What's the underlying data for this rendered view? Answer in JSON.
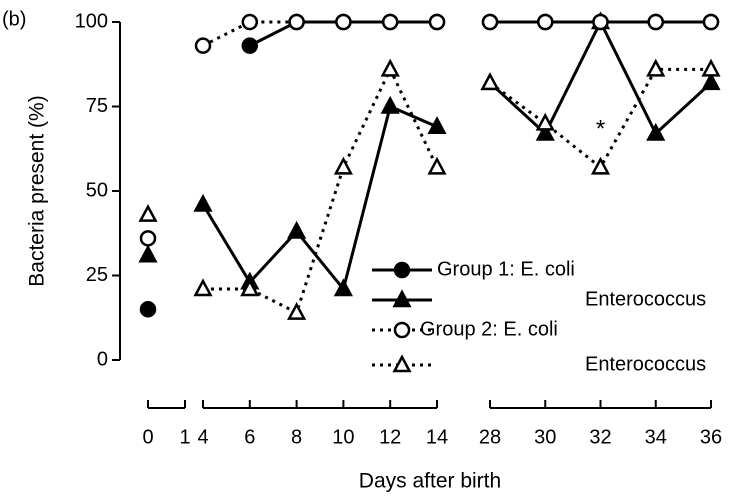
{
  "chart_data": {
    "type": "line",
    "panel_label": "(b)",
    "ylabel": "Bacteria present (%)",
    "xlabel": "Days after birth",
    "x": [
      0,
      4,
      6,
      8,
      10,
      12,
      14,
      28,
      30,
      32,
      34,
      36
    ],
    "series": [
      {
        "name": "Group 1: E. coli",
        "color": "#000000",
        "line": "solid",
        "marker": "circle",
        "filled": true,
        "values": [
          15,
          null,
          93,
          100,
          100,
          100,
          100,
          100,
          100,
          100,
          100,
          100
        ]
      },
      {
        "name": "Enterococcus",
        "color": "#000000",
        "line": "solid",
        "marker": "triangle",
        "filled": true,
        "values": [
          31,
          46,
          23,
          38,
          21,
          75,
          69,
          82,
          67,
          100,
          67,
          82
        ]
      },
      {
        "name": "Group 2: E. coli",
        "color": "#000000",
        "line": "dotted",
        "marker": "circle",
        "filled": false,
        "values": [
          36,
          93,
          100,
          100,
          100,
          100,
          100,
          100,
          100,
          100,
          100,
          100
        ]
      },
      {
        "name": "Enterococcus",
        "color": "#000000",
        "line": "dotted",
        "marker": "triangle",
        "filled": false,
        "values": [
          43,
          21,
          21,
          14,
          57,
          86,
          57,
          82,
          70,
          57,
          86,
          86
        ]
      }
    ],
    "annotations": [
      {
        "text": "*",
        "x": 32,
        "y": 68
      }
    ],
    "ylim": [
      0,
      100
    ],
    "yticks": [
      0,
      25,
      50,
      75,
      100
    ],
    "xlims": [
      [
        0,
        1
      ],
      [
        4,
        14
      ],
      [
        28,
        36
      ]
    ],
    "xticks": [
      0,
      1,
      4,
      6,
      8,
      10,
      12,
      14,
      28,
      30,
      32,
      34,
      36
    ]
  }
}
